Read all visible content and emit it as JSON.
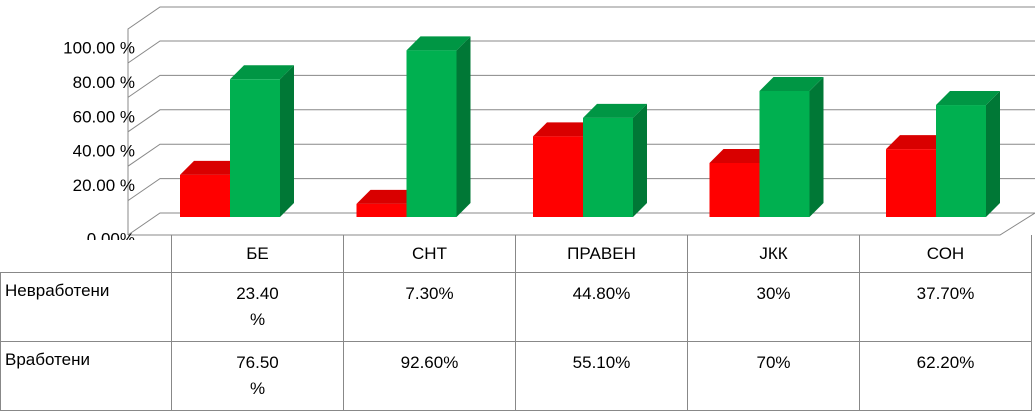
{
  "chart_data": {
    "type": "bar3d",
    "categories": [
      "БЕ",
      "СНТ",
      "ПРАВЕН",
      "ЈКК",
      "СОН"
    ],
    "series": [
      {
        "name": "Невработени",
        "color": "#ff0000",
        "values": [
          23.4,
          7.3,
          44.8,
          30,
          37.7
        ],
        "value_labels": [
          "23.40 %",
          "7.30%",
          "44.80%",
          "30%",
          "37.70%"
        ]
      },
      {
        "name": "Вработени",
        "color": "#00b050",
        "values": [
          76.5,
          92.6,
          55.1,
          70,
          62.2
        ],
        "value_labels": [
          "76.50 %",
          "92.60%",
          "55.10%",
          "70%",
          "62.20%"
        ]
      }
    ],
    "ylim": [
      0,
      100
    ],
    "yticks": [
      {
        "value": 0,
        "label": "0.00%"
      },
      {
        "value": 20,
        "label": "20.00 %"
      },
      {
        "value": 40,
        "label": "40.00 %"
      },
      {
        "value": 60,
        "label": "60.00 %"
      },
      {
        "value": 80,
        "label": "80.00 %"
      },
      {
        "value": 100,
        "label": "100.00 %"
      }
    ],
    "grid": true
  }
}
